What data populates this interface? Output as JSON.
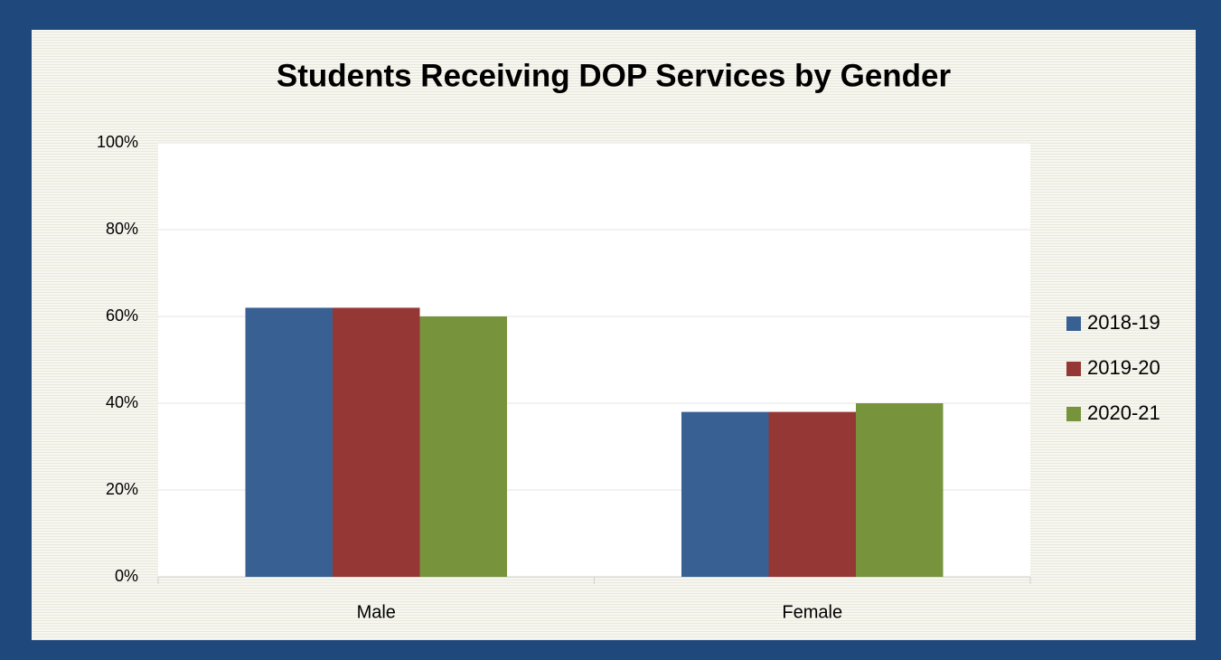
{
  "chart_data": {
    "type": "bar",
    "title": "Students Receiving DOP Services by Gender",
    "categories": [
      "Male",
      "Female"
    ],
    "series": [
      {
        "name": "2018-19",
        "color": "#386092",
        "values": [
          62,
          38
        ]
      },
      {
        "name": "2019-20",
        "color": "#953735",
        "values": [
          62,
          38
        ]
      },
      {
        "name": "2020-21",
        "color": "#77933c",
        "values": [
          60,
          40
        ]
      }
    ],
    "ylim": [
      0,
      100
    ],
    "yticks": [
      {
        "value": 0,
        "label": "0%"
      },
      {
        "value": 20,
        "label": "20%"
      },
      {
        "value": 40,
        "label": "40%"
      },
      {
        "value": 60,
        "label": "60%"
      },
      {
        "value": 80,
        "label": "80%"
      },
      {
        "value": 100,
        "label": "100%"
      }
    ],
    "grid": true,
    "legend": "right"
  }
}
